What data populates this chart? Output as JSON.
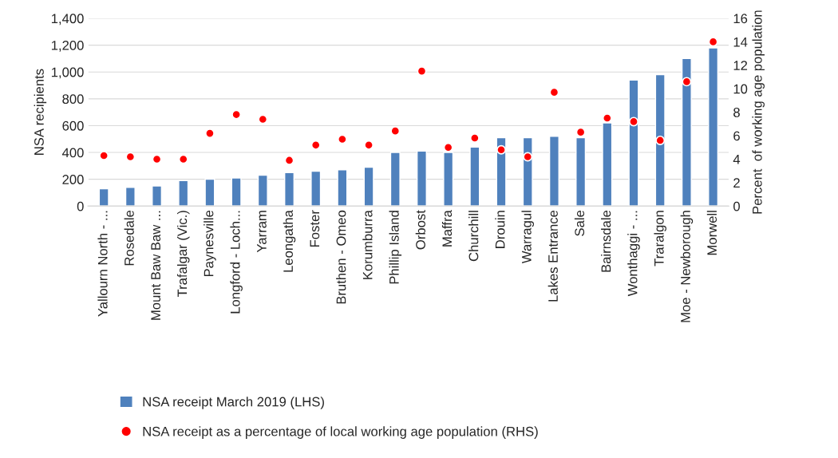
{
  "chart_data": {
    "type": "bar",
    "categories": [
      "Yallourn North - ...",
      "Rosedale",
      "Mount Baw Baw ...",
      "Trafalgar (Vic.)",
      "Paynesville",
      "Longford - Loch...",
      "Yarram",
      "Leongatha",
      "Foster",
      "Bruthen - Omeo",
      "Korumburra",
      "Phillip Island",
      "Orbost",
      "Maffra",
      "Churchill",
      "Drouin",
      "Warragul",
      "Lakes Entrance",
      "Sale",
      "Bairnsdale",
      "Wonthaggi - ...",
      "Traralgon",
      "Moe - Newborough",
      "Morwell"
    ],
    "series": [
      {
        "name": "NSA receipt March 2019 (LHS)",
        "color": "#4f81bd",
        "values": [
          130,
          140,
          150,
          190,
          200,
          210,
          230,
          250,
          260,
          270,
          290,
          400,
          410,
          400,
          440,
          510,
          510,
          520,
          510,
          620,
          940,
          980,
          1100,
          1180
        ]
      },
      {
        "name": "NSA receipt as a percentage of local working age population (RHS)",
        "type": "scatter",
        "axis": "y2",
        "color": "#ff0000",
        "values": [
          4.3,
          4.2,
          4.0,
          4.0,
          6.2,
          7.8,
          7.4,
          3.9,
          5.2,
          5.7,
          5.2,
          6.4,
          11.5,
          5.0,
          5.8,
          4.8,
          4.2,
          9.7,
          6.3,
          7.5,
          7.2,
          5.6,
          10.6,
          14.0
        ]
      }
    ],
    "ylabel": "NSA recipients",
    "y2label": "Percent  of working age population",
    "ylim": [
      0,
      1400
    ],
    "yticks": [
      {
        "value": 0,
        "label": "0"
      },
      {
        "value": 200,
        "label": "200"
      },
      {
        "value": 400,
        "label": "400"
      },
      {
        "value": 600,
        "label": "600"
      },
      {
        "value": 800,
        "label": "800"
      },
      {
        "value": 1000,
        "label": "1,000"
      },
      {
        "value": 1200,
        "label": "1,200"
      },
      {
        "value": 1400,
        "label": "1,400"
      }
    ],
    "y2lim": [
      0,
      16
    ],
    "y2ticks": [
      0,
      2,
      4,
      6,
      8,
      10,
      12,
      14,
      16
    ],
    "grid": "y",
    "legend": "bottom",
    "marker": "circle"
  }
}
